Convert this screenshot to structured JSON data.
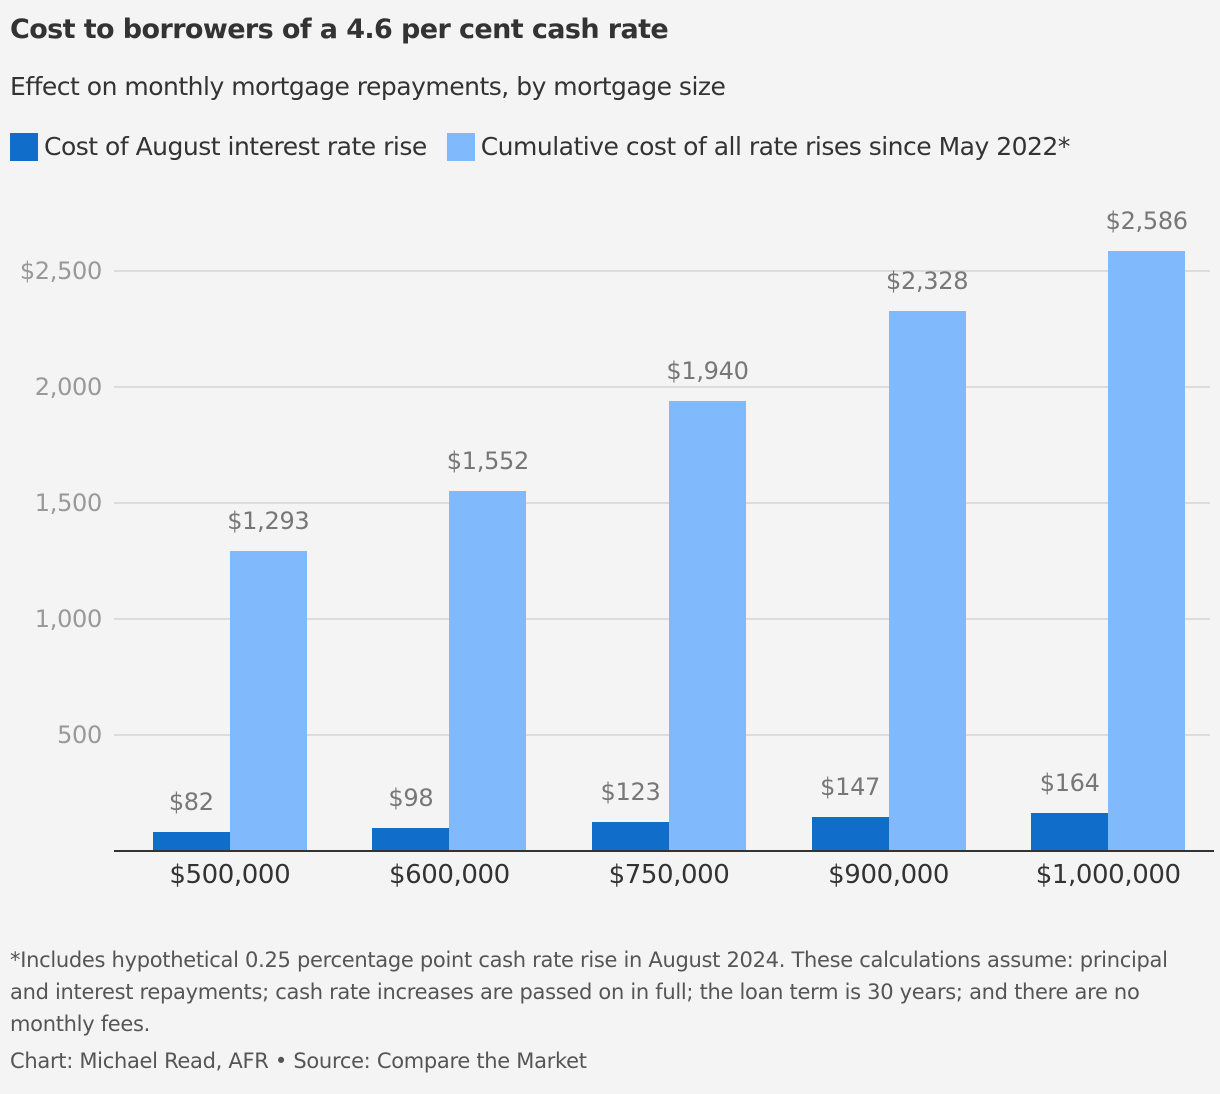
{
  "title": "Cost to borrowers of a 4.6 per cent cash rate",
  "subtitle": "Effect on monthly mortgage repayments, by mortgage size",
  "legend": [
    {
      "label": "Cost of August interest rate rise",
      "color": "#116dca"
    },
    {
      "label": "Cumulative cost of all rate rises since May 2022*",
      "color": "#80b9fc"
    }
  ],
  "yaxis": {
    "ticks": [
      {
        "value": 2500,
        "label": "$2,500"
      },
      {
        "value": 2000,
        "label": "2,000"
      },
      {
        "value": 1500,
        "label": "1,500"
      },
      {
        "value": 1000,
        "label": "1,000"
      },
      {
        "value": 500,
        "label": "500"
      }
    ]
  },
  "footnote": "*Includes hypothetical 0.25 percentage point cash rate rise in August 2024. These calculations assume: principal and interest repayments; cash rate increases are passed on in full; the loan term is 30 years; and there are no monthly fees.",
  "credit": "Chart: Michael Read, AFR • Source: Compare the Market",
  "chart_data": {
    "type": "bar",
    "title": "Cost to borrowers of a 4.6 per cent cash rate",
    "subtitle": "Effect on monthly mortgage repayments, by mortgage size",
    "xlabel": "",
    "ylabel": "",
    "categories": [
      "$500,000",
      "$600,000",
      "$750,000",
      "$900,000",
      "$1,000,000"
    ],
    "series": [
      {
        "name": "Cost of August interest rate rise",
        "color": "#116dca",
        "values": [
          82,
          98,
          123,
          147,
          164
        ],
        "labels": [
          "$82",
          "$98",
          "$123",
          "$147",
          "$164"
        ]
      },
      {
        "name": "Cumulative cost of all rate rises since May 2022*",
        "color": "#80b9fc",
        "values": [
          1293,
          1552,
          1940,
          2328,
          2586
        ],
        "labels": [
          "$1,293",
          "$1,552",
          "$1,940",
          "$2,328",
          "$2,586"
        ]
      }
    ],
    "ylim": [
      0,
      2700
    ],
    "yticks": [
      500,
      1000,
      1500,
      2000,
      2500
    ],
    "grid": true,
    "legend_position": "top-left"
  }
}
